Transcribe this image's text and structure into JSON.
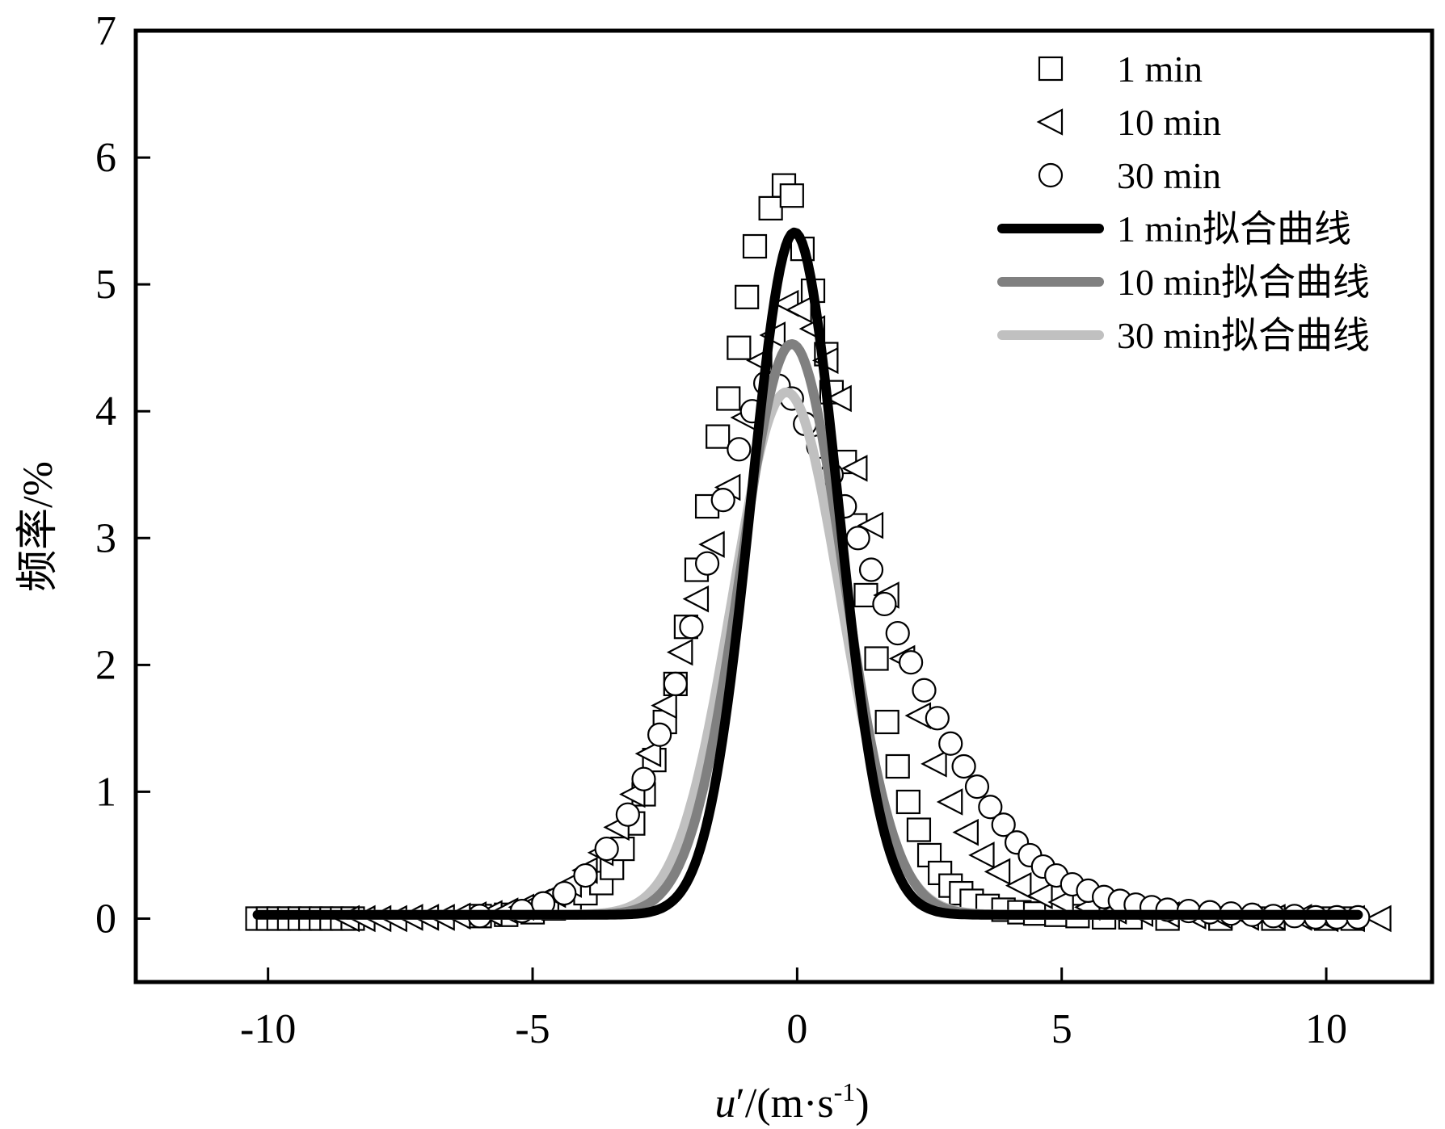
{
  "chart_data": {
    "type": "scatter",
    "title": "",
    "xlabel": {
      "var": "u",
      "prime": "′",
      "unit_open": "/(m·s",
      "unit_exp": "-1",
      "unit_close": ")"
    },
    "ylabel": "频率/%",
    "xlim": [
      -12.5,
      12
    ],
    "ylim": [
      -0.5,
      7
    ],
    "xticks": [
      -10,
      -5,
      0,
      5,
      10
    ],
    "xtick_labels": [
      "-10",
      "-5",
      "0",
      "5",
      "10"
    ],
    "yticks": [
      0,
      1,
      2,
      3,
      4,
      5,
      6,
      7
    ],
    "ytick_labels": [
      "0",
      "1",
      "2",
      "3",
      "4",
      "5",
      "6",
      "7"
    ],
    "grid": false,
    "legend_position": "top-right",
    "colors": {
      "fit_1min": "#000000",
      "fit_10min": "#808080",
      "fit_30min": "#c0c0c0",
      "marker": "#000000"
    },
    "series": [
      {
        "name": "1 min",
        "kind": "scatter",
        "marker": "square",
        "x": [
          -10.2,
          -10.0,
          -9.8,
          -9.6,
          -9.4,
          -9.2,
          -9.0,
          -8.8,
          -8.6,
          -8.4,
          -6.0,
          -5.5,
          -5.0,
          -4.6,
          -4.3,
          -4.0,
          -3.7,
          -3.5,
          -3.3,
          -3.1,
          -2.9,
          -2.7,
          -2.5,
          -2.3,
          -2.1,
          -1.9,
          -1.7,
          -1.5,
          -1.3,
          -1.1,
          -0.95,
          -0.8,
          -0.5,
          -0.25,
          -0.1,
          0.1,
          0.3,
          0.55,
          0.65,
          0.9,
          1.1,
          1.3,
          1.5,
          1.7,
          1.9,
          2.1,
          2.3,
          2.5,
          2.7,
          2.9,
          3.1,
          3.3,
          3.6,
          3.9,
          4.2,
          4.5,
          4.9,
          5.3,
          5.8,
          6.3,
          7.0,
          8.0,
          9.0,
          10.0,
          10.5
        ],
        "y": [
          0.0,
          0.0,
          0.0,
          0.0,
          0.0,
          0.0,
          0.0,
          0.0,
          0.0,
          0.0,
          0.02,
          0.03,
          0.05,
          0.08,
          0.12,
          0.2,
          0.28,
          0.4,
          0.55,
          0.75,
          0.98,
          1.25,
          1.55,
          1.85,
          2.3,
          2.75,
          3.25,
          3.8,
          4.1,
          4.5,
          4.9,
          5.3,
          5.6,
          5.78,
          5.7,
          5.28,
          4.95,
          4.45,
          4.15,
          3.6,
          3.1,
          2.55,
          2.05,
          1.55,
          1.2,
          0.92,
          0.7,
          0.5,
          0.36,
          0.26,
          0.2,
          0.14,
          0.1,
          0.07,
          0.05,
          0.04,
          0.03,
          0.02,
          0.01,
          0.01,
          0.0,
          0.0,
          0.0,
          0.0,
          0.0
        ]
      },
      {
        "name": "10 min",
        "kind": "scatter",
        "marker": "triangle-left",
        "x": [
          -8.5,
          -8.2,
          -7.9,
          -7.6,
          -7.3,
          -7.0,
          -6.7,
          -6.4,
          -6.1,
          -5.8,
          -5.5,
          -5.2,
          -4.9,
          -4.6,
          -4.3,
          -4.0,
          -3.7,
          -3.4,
          -3.1,
          -2.8,
          -2.5,
          -2.2,
          -1.9,
          -1.6,
          -1.3,
          -1.0,
          -0.7,
          -0.45,
          -0.2,
          0.05,
          0.3,
          0.55,
          0.8,
          1.1,
          1.4,
          1.7,
          2.0,
          2.3,
          2.6,
          2.9,
          3.2,
          3.5,
          3.8,
          4.2,
          4.6,
          5.0,
          5.5,
          6.0,
          6.5,
          7.0,
          7.5,
          8.0,
          8.5,
          9.0,
          9.5,
          10.0,
          10.5,
          11.0
        ],
        "y": [
          0.0,
          0.0,
          0.0,
          0.0,
          0.01,
          0.01,
          0.01,
          0.02,
          0.03,
          0.04,
          0.06,
          0.09,
          0.13,
          0.19,
          0.27,
          0.38,
          0.52,
          0.72,
          0.98,
          1.3,
          1.68,
          2.1,
          2.52,
          2.95,
          3.4,
          3.95,
          4.4,
          4.6,
          4.85,
          4.8,
          4.65,
          4.4,
          4.1,
          3.55,
          3.1,
          2.55,
          2.05,
          1.6,
          1.22,
          0.92,
          0.68,
          0.5,
          0.37,
          0.26,
          0.18,
          0.13,
          0.09,
          0.06,
          0.04,
          0.03,
          0.02,
          0.02,
          0.01,
          0.01,
          0.01,
          0.0,
          0.0,
          0.0
        ]
      },
      {
        "name": "30 min",
        "kind": "scatter",
        "marker": "circle",
        "x": [
          -6.0,
          -5.2,
          -4.8,
          -4.4,
          -4.0,
          -3.6,
          -3.2,
          -2.9,
          -2.6,
          -2.3,
          -2.0,
          -1.7,
          -1.4,
          -1.1,
          -0.85,
          -0.6,
          -0.35,
          -0.1,
          0.15,
          0.4,
          0.65,
          0.9,
          1.15,
          1.4,
          1.65,
          1.9,
          2.15,
          2.4,
          2.65,
          2.9,
          3.15,
          3.4,
          3.65,
          3.9,
          4.15,
          4.4,
          4.65,
          4.9,
          5.2,
          5.5,
          5.8,
          6.1,
          6.4,
          6.7,
          7.0,
          7.4,
          7.8,
          8.2,
          8.6,
          9.0,
          9.4,
          9.8,
          10.2,
          10.6
        ],
        "y": [
          0.02,
          0.06,
          0.12,
          0.2,
          0.34,
          0.55,
          0.82,
          1.1,
          1.45,
          1.85,
          2.3,
          2.8,
          3.3,
          3.7,
          4.0,
          4.22,
          4.2,
          4.1,
          3.9,
          3.72,
          3.5,
          3.25,
          3.0,
          2.75,
          2.48,
          2.25,
          2.02,
          1.8,
          1.58,
          1.38,
          1.2,
          1.04,
          0.88,
          0.74,
          0.6,
          0.5,
          0.41,
          0.34,
          0.27,
          0.22,
          0.17,
          0.14,
          0.11,
          0.09,
          0.07,
          0.06,
          0.05,
          0.04,
          0.03,
          0.02,
          0.02,
          0.01,
          0.01,
          0.01
        ]
      },
      {
        "name": "1 min拟合曲线",
        "kind": "fit",
        "color": "#000000",
        "y0": 0.03,
        "A": 5.38,
        "xc": -0.05,
        "w": 1.65,
        "x_range": [
          -10.2,
          10.6
        ]
      },
      {
        "name": "10 min拟合曲线",
        "kind": "fit",
        "color": "#808080",
        "y0": 0.03,
        "A": 4.5,
        "xc": -0.1,
        "w": 1.93,
        "x_range": [
          -8.5,
          10.6
        ]
      },
      {
        "name": "30 min拟合曲线",
        "kind": "fit",
        "color": "#c0c0c0",
        "y0": 0.03,
        "A": 4.12,
        "xc": -0.2,
        "w": 2.05,
        "x_range": [
          -8.5,
          10.6
        ]
      }
    ]
  }
}
